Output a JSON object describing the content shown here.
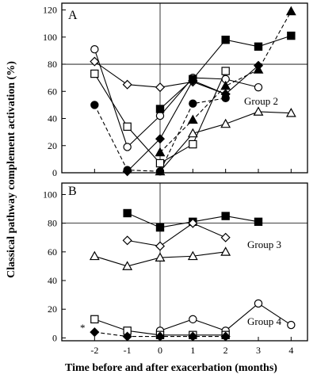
{
  "chart_data": [
    {
      "type": "line",
      "panel_label": "A",
      "xlim": [
        -3,
        4.5
      ],
      "ylim": [
        0,
        125
      ],
      "yticks": [
        0,
        20,
        40,
        60,
        80,
        100,
        120
      ],
      "reference_line_y": 80,
      "reference_line_x": 0,
      "annotations": [
        "Group 2"
      ],
      "series": [
        {
          "marker": "circle-open",
          "dash": false,
          "x": [
            -2,
            -1,
            0,
            1,
            2,
            3
          ],
          "y": [
            91,
            19,
            42,
            70,
            69,
            63
          ]
        },
        {
          "marker": "diamond-open",
          "dash": false,
          "x": [
            -2,
            -1,
            0,
            1,
            2
          ],
          "y": [
            82,
            65,
            63,
            67,
            58
          ]
        },
        {
          "marker": "square-open",
          "dash": false,
          "x": [
            -2,
            -1,
            0,
            1,
            2
          ],
          "y": [
            73,
            34,
            7,
            21,
            75
          ]
        },
        {
          "marker": "triangle-open",
          "dash": false,
          "x": [
            0,
            1,
            2,
            3,
            4
          ],
          "y": [
            1,
            29,
            36,
            45,
            44
          ]
        },
        {
          "marker": "square-filled",
          "dash": false,
          "x": [
            0,
            1,
            2,
            3,
            4
          ],
          "y": [
            47,
            69,
            98,
            93,
            101
          ]
        },
        {
          "marker": "triangle-filled",
          "dash": true,
          "x": [
            0,
            1,
            2,
            3,
            4
          ],
          "y": [
            15,
            39,
            64,
            76,
            119
          ]
        },
        {
          "marker": "diamond-filled",
          "dash": false,
          "x": [
            -1,
            0,
            1,
            2,
            3
          ],
          "y": [
            1,
            25,
            68,
            58,
            79
          ]
        },
        {
          "marker": "circle-filled",
          "dash": true,
          "x": [
            -2,
            -1,
            0,
            1,
            2
          ],
          "y": [
            50,
            2,
            1,
            51,
            55
          ]
        }
      ]
    },
    {
      "type": "line",
      "panel_label": "B",
      "xlim": [
        -3,
        4.5
      ],
      "ylim": [
        -2,
        108
      ],
      "yticks": [
        0,
        20,
        40,
        60,
        80,
        100
      ],
      "reference_line_y": 80,
      "reference_line_x": 0,
      "annotations": [
        "Group 3",
        "Group 4",
        "*"
      ],
      "series": [
        {
          "marker": "square-filled",
          "dash": false,
          "x": [
            -1,
            0,
            1,
            2,
            3
          ],
          "y": [
            87,
            77,
            81,
            85,
            81
          ]
        },
        {
          "marker": "diamond-open",
          "dash": false,
          "x": [
            -1,
            0,
            1,
            2
          ],
          "y": [
            68,
            64,
            80,
            70
          ]
        },
        {
          "marker": "triangle-open",
          "dash": false,
          "x": [
            -2,
            -1,
            0,
            1,
            2
          ],
          "y": [
            57,
            50,
            56,
            57,
            60
          ]
        },
        {
          "marker": "circle-open",
          "dash": false,
          "x": [
            0,
            1,
            2,
            3,
            4
          ],
          "y": [
            5,
            13,
            5,
            24,
            9
          ]
        },
        {
          "marker": "square-open",
          "dash": false,
          "x": [
            -2,
            -1,
            0,
            1,
            2
          ],
          "y": [
            13,
            5,
            2,
            2,
            2
          ]
        },
        {
          "marker": "diamond-filled",
          "dash": true,
          "x": [
            -2,
            -1,
            0,
            1,
            2
          ],
          "y": [
            4,
            1,
            1,
            1,
            1
          ]
        }
      ]
    }
  ],
  "shared_axes": {
    "xticks": [
      -2,
      -1,
      0,
      1,
      2,
      3,
      4
    ],
    "xlabel": "Time before and after exacerbation (months)",
    "ylabel": "Classical pathway complement activation (%)"
  }
}
